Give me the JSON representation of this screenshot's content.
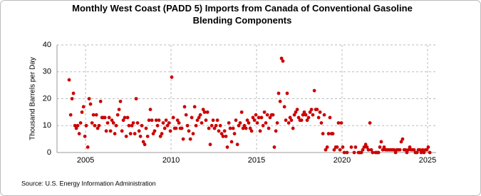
{
  "chart_data": {
    "type": "scatter",
    "title": "Monthly West Coast (PADD 5) Imports from Canada of Conventional Gasoline Blending Components",
    "y_label": "Thousand Barrels per Day",
    "source": "Source: U.S. Energy Information Administration",
    "color": "#cc0000",
    "grid": true,
    "xlim": [
      2003.33,
      2025.5
    ],
    "ylim": [
      0,
      40
    ],
    "xticks": [
      2005,
      2010,
      2015,
      2020,
      2025
    ],
    "yticks": [
      0,
      10,
      20,
      30,
      40
    ],
    "x": [
      2004.04,
      2004.13,
      2004.21,
      2004.29,
      2004.38,
      2004.46,
      2004.54,
      2004.63,
      2004.71,
      2004.79,
      2004.88,
      2004.96,
      2005.04,
      2005.13,
      2005.21,
      2005.29,
      2005.38,
      2005.46,
      2005.54,
      2005.63,
      2005.71,
      2005.79,
      2005.88,
      2005.96,
      2006.04,
      2006.13,
      2006.21,
      2006.29,
      2006.38,
      2006.46,
      2006.54,
      2006.63,
      2006.71,
      2006.79,
      2006.88,
      2006.96,
      2007.04,
      2007.13,
      2007.21,
      2007.29,
      2007.38,
      2007.46,
      2007.54,
      2007.63,
      2007.71,
      2007.79,
      2007.88,
      2007.96,
      2008.04,
      2008.13,
      2008.21,
      2008.29,
      2008.38,
      2008.46,
      2008.54,
      2008.63,
      2008.71,
      2008.79,
      2008.88,
      2008.96,
      2009.04,
      2009.13,
      2009.21,
      2009.29,
      2009.38,
      2009.46,
      2009.54,
      2009.63,
      2009.71,
      2009.79,
      2009.88,
      2009.96,
      2010.04,
      2010.13,
      2010.21,
      2010.29,
      2010.38,
      2010.46,
      2010.54,
      2010.63,
      2010.71,
      2010.79,
      2010.88,
      2010.96,
      2011.04,
      2011.13,
      2011.21,
      2011.29,
      2011.38,
      2011.46,
      2011.54,
      2011.63,
      2011.71,
      2011.79,
      2011.88,
      2011.96,
      2012.04,
      2012.13,
      2012.21,
      2012.29,
      2012.38,
      2012.46,
      2012.54,
      2012.63,
      2012.71,
      2012.79,
      2012.88,
      2012.96,
      2013.04,
      2013.13,
      2013.21,
      2013.29,
      2013.38,
      2013.46,
      2013.54,
      2013.63,
      2013.71,
      2013.79,
      2013.88,
      2013.96,
      2014.04,
      2014.13,
      2014.21,
      2014.29,
      2014.38,
      2014.46,
      2014.54,
      2014.63,
      2014.71,
      2014.79,
      2014.88,
      2014.96,
      2015.04,
      2015.13,
      2015.21,
      2015.29,
      2015.38,
      2015.46,
      2015.54,
      2015.63,
      2015.71,
      2015.79,
      2015.88,
      2015.96,
      2016.04,
      2016.13,
      2016.21,
      2016.29,
      2016.38,
      2016.46,
      2016.54,
      2016.63,
      2016.71,
      2016.79,
      2016.88,
      2016.96,
      2017.04,
      2017.13,
      2017.21,
      2017.29,
      2017.38,
      2017.46,
      2017.54,
      2017.63,
      2017.71,
      2017.79,
      2017.88,
      2017.96,
      2018.04,
      2018.13,
      2018.21,
      2018.29,
      2018.38,
      2018.46,
      2018.54,
      2018.63,
      2018.71,
      2018.79,
      2018.88,
      2018.96,
      2019.04,
      2019.13,
      2019.21,
      2019.29,
      2019.38,
      2019.46,
      2019.54,
      2019.63,
      2019.71,
      2019.79,
      2019.88,
      2019.96,
      2020.04,
      2020.13,
      2020.21,
      2020.29,
      2020.38,
      2020.46,
      2020.54,
      2020.63,
      2020.71,
      2020.79,
      2020.88,
      2020.96,
      2021.04,
      2021.13,
      2021.21,
      2021.29,
      2021.38,
      2021.46,
      2021.54,
      2021.63,
      2021.71,
      2021.79,
      2021.88,
      2021.96,
      2022.04,
      2022.13,
      2022.21,
      2022.29,
      2022.38,
      2022.46,
      2022.54,
      2022.63,
      2022.71,
      2022.79,
      2022.88,
      2022.96,
      2023.04,
      2023.13,
      2023.21,
      2023.29,
      2023.38,
      2023.46,
      2023.54,
      2023.63,
      2023.71,
      2023.79,
      2023.88,
      2023.96,
      2024.04,
      2024.13,
      2024.21,
      2024.29,
      2024.38,
      2024.46,
      2024.54,
      2024.63,
      2024.71,
      2024.79,
      2024.88,
      2024.96,
      2025.04,
      2025.13
    ],
    "values": [
      27,
      14,
      20,
      22,
      10,
      9,
      10,
      7,
      11,
      15,
      17,
      6,
      10,
      2,
      20,
      18,
      11,
      14,
      10,
      14,
      9,
      10,
      19,
      13,
      13,
      13,
      8,
      11,
      13,
      8,
      12,
      11,
      7,
      10,
      14,
      16,
      19,
      8,
      12,
      13,
      6,
      13,
      10,
      7,
      10,
      11,
      7,
      20,
      11,
      8,
      6,
      10,
      4,
      3,
      9,
      6,
      12,
      16,
      12,
      7,
      8,
      12,
      10,
      12,
      6,
      7,
      11,
      9,
      12,
      10,
      11,
      8,
      28,
      13,
      9,
      9,
      12,
      11,
      9,
      9,
      5,
      17,
      14,
      10,
      8,
      5,
      13,
      7,
      17,
      10,
      12,
      13,
      14,
      11,
      16,
      15,
      12,
      15,
      9,
      3,
      10,
      12,
      9,
      10,
      12,
      8,
      10,
      7,
      6,
      8,
      6,
      2,
      11,
      9,
      4,
      9,
      7,
      12,
      3,
      10,
      11,
      15,
      9,
      10,
      9,
      12,
      11,
      9,
      8,
      13,
      12,
      14,
      11,
      13,
      8,
      13,
      10,
      15,
      11,
      14,
      9,
      13,
      14,
      14,
      2,
      8,
      11,
      22,
      19,
      35,
      34,
      17,
      12,
      22,
      11,
      13,
      12,
      9,
      14,
      15,
      16,
      13,
      12,
      12,
      14,
      15,
      14,
      12,
      13,
      15,
      16,
      14,
      23,
      16,
      16,
      13,
      15,
      11,
      7,
      14,
      1,
      2,
      7,
      13,
      7,
      7,
      1,
      2,
      2,
      11,
      1,
      11,
      2,
      0,
      null,
      0,
      null,
      null,
      2,
      null,
      0,
      2,
      null,
      0,
      0,
      0,
      1,
      2,
      3,
      2,
      1,
      11,
      1,
      0,
      null,
      0,
      0,
      0,
      2,
      4,
      1,
      2,
      1,
      1,
      1,
      1,
      1,
      1,
      1,
      0,
      1,
      1,
      1,
      4,
      5,
      1,
      1,
      0,
      1,
      2,
      1,
      1,
      1,
      0,
      0,
      1,
      1,
      0,
      1,
      0,
      1,
      1,
      2,
      0
    ]
  }
}
